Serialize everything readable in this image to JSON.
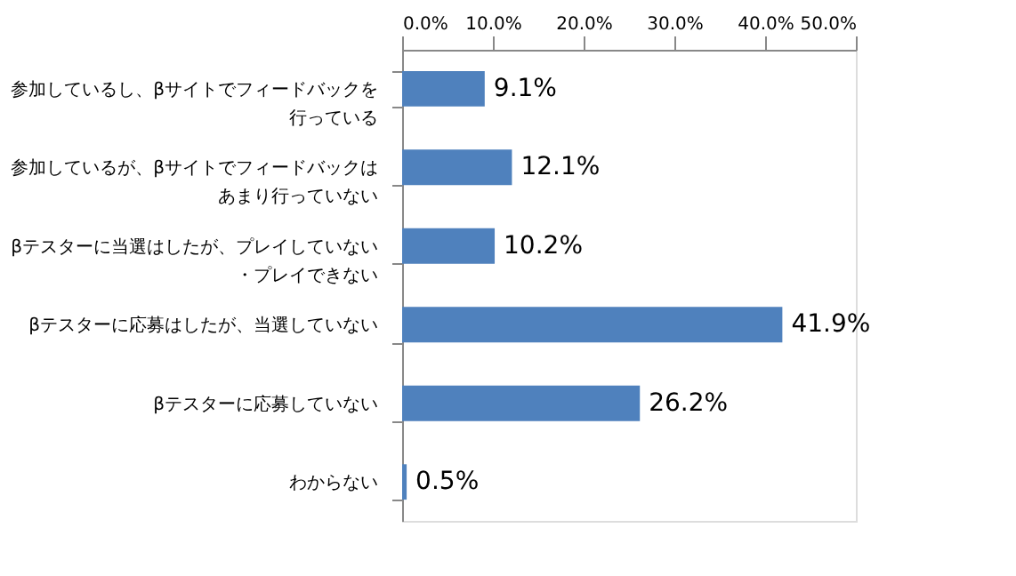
{
  "chart_data": {
    "type": "bar",
    "orientation": "horizontal",
    "categories": [
      "参加しているし、βサイトでフィードバックを行っている",
      "参加しているが、βサイトでフィードバックはあまり行っていない",
      "βテスターに当選はしたが、プレイしていない・プレイできない",
      "βテスターに応募はしたが、当選していない",
      "βテスターに応募していない",
      "わからない"
    ],
    "values": [
      9.1,
      12.1,
      10.2,
      41.9,
      26.2,
      0.5
    ],
    "value_labels": [
      "9.1%",
      "12.1%",
      "10.2%",
      "41.9%",
      "26.2%",
      "0.5%"
    ],
    "color": "#4f81bd",
    "xlim": [
      0,
      50
    ],
    "xticks": [
      {
        "value": 0,
        "label": "0.0%"
      },
      {
        "value": 10,
        "label": "10.0%"
      },
      {
        "value": 20,
        "label": "20.0%"
      },
      {
        "value": 30,
        "label": "30.0%"
      },
      {
        "value": 40,
        "label": "40.0%"
      },
      {
        "value": 50,
        "label": "50.0%"
      }
    ],
    "grid": false,
    "legend": false
  }
}
